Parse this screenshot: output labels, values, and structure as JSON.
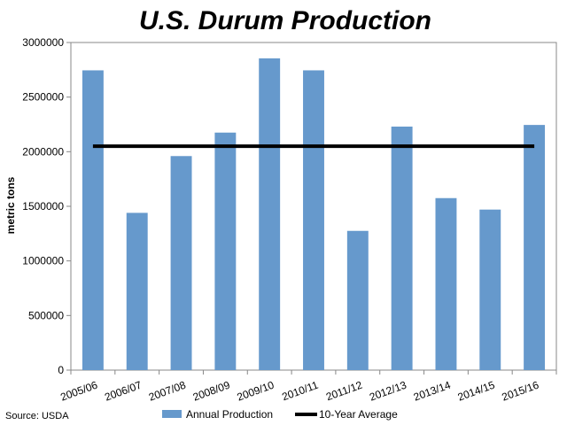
{
  "chart_data": {
    "type": "bar",
    "title": "U.S. Durum Production",
    "ylabel": "metric tons",
    "xlabel": "",
    "source": "Source: USDA",
    "categories": [
      "2005/06",
      "2006/07",
      "2007/08",
      "2008/09",
      "2009/10",
      "2010/11",
      "2011/12",
      "2012/13",
      "2013/14",
      "2014/15",
      "2015/16"
    ],
    "series": [
      {
        "name": "Annual Production",
        "type": "bar",
        "color": "#6699cc",
        "values": [
          2745000,
          1440000,
          1960000,
          2175000,
          2855000,
          2745000,
          1275000,
          2230000,
          1575000,
          1470000,
          2245000
        ]
      },
      {
        "name": "10-Year Average",
        "type": "line",
        "color": "#000000",
        "values": [
          2050000,
          2050000,
          2050000,
          2050000,
          2050000,
          2050000,
          2050000,
          2050000,
          2050000,
          2050000,
          2050000
        ]
      }
    ],
    "ylim": [
      0,
      3000000
    ],
    "yticks": [
      "0",
      "500000",
      "1000000",
      "1500000",
      "2000000",
      "2500000",
      "3000000"
    ],
    "grid": false,
    "legend": "bottom"
  }
}
